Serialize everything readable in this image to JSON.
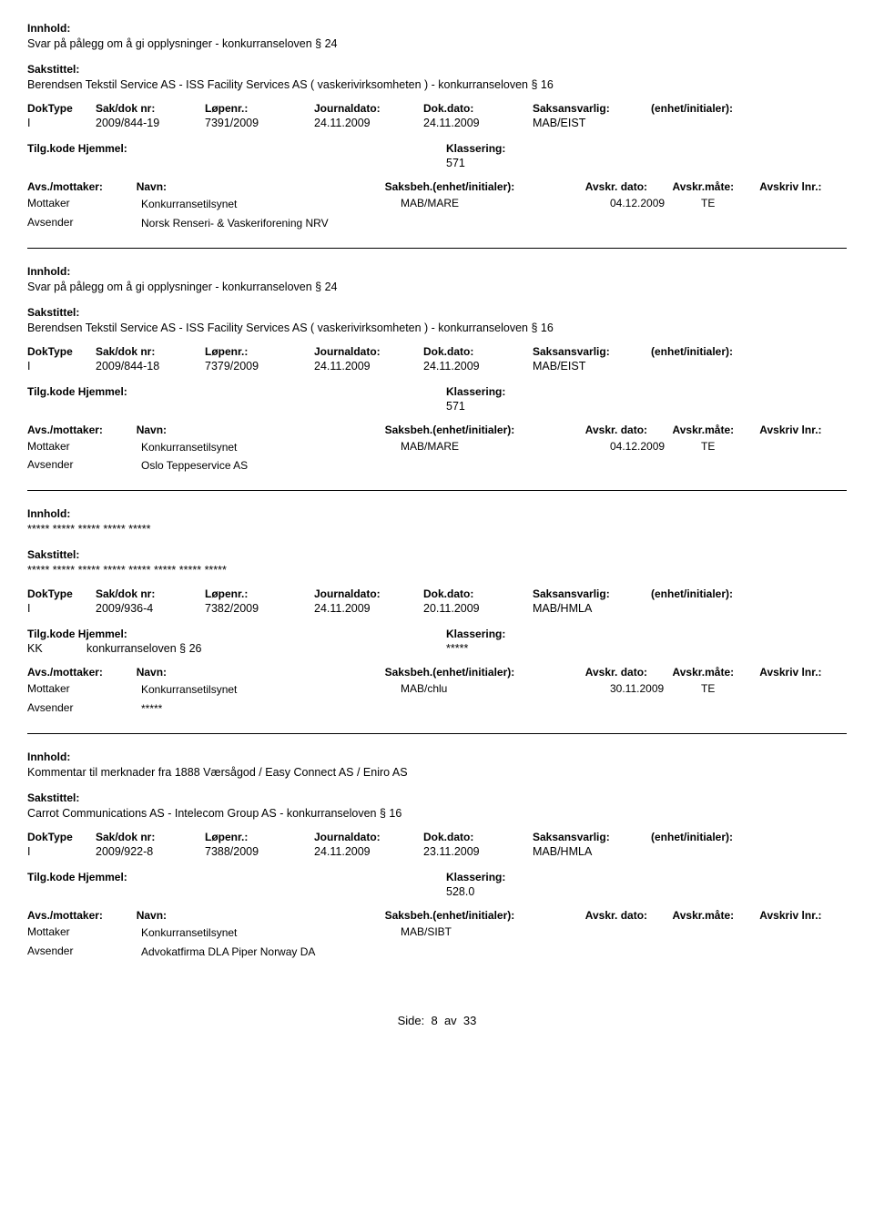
{
  "labels": {
    "innhold": "Innhold:",
    "sakstittel": "Sakstittel:",
    "doktype": "DokType",
    "sakdok": "Sak/dok nr:",
    "lopenr": "Løpenr.:",
    "journaldato": "Journaldato:",
    "dokdato": "Dok.dato:",
    "saksansvarlig": "Saksansvarlig:",
    "enhet": "(enhet/initialer):",
    "tilgkode": "Tilg.kode",
    "hjemmel": "Hjemmel:",
    "klassering": "Klassering:",
    "avsmottaker": "Avs./mottaker:",
    "navn": "Navn:",
    "saksbeh": "Saksbeh.(enhet/initialer):",
    "avskrdato": "Avskr. dato:",
    "avskrmate": "Avskr.måte:",
    "avskrivlnr": "Avskriv lnr.:",
    "mottaker": "Mottaker",
    "avsender": "Avsender"
  },
  "records": [
    {
      "innhold": "Svar på pålegg om å gi opplysninger - konkurranseloven § 24",
      "sakstittel": "Berendsen Tekstil Service AS - ISS Facility Services AS ( vaskerivirksomheten ) - konkurranseloven § 16",
      "doktype": "I",
      "sakdok": "2009/844-19",
      "lopenr": "7391/2009",
      "journaldato": "24.11.2009",
      "dokdato": "24.11.2009",
      "saksansvarlig": "MAB/EIST",
      "tilgkode": "",
      "hjemmel": "",
      "klassering": "571",
      "parties": [
        {
          "role": "Mottaker",
          "name": "Konkurransetilsynet",
          "saksbeh": "MAB/MARE",
          "dato": "04.12.2009",
          "mate": "TE"
        },
        {
          "role": "Avsender",
          "name": "Norsk Renseri- & Vaskeriforening NRV",
          "saksbeh": "",
          "dato": "",
          "mate": ""
        }
      ]
    },
    {
      "innhold": "Svar på pålegg om å gi opplysninger - konkurranseloven § 24",
      "sakstittel": "Berendsen Tekstil Service AS - ISS Facility Services AS ( vaskerivirksomheten ) - konkurranseloven § 16",
      "doktype": "I",
      "sakdok": "2009/844-18",
      "lopenr": "7379/2009",
      "journaldato": "24.11.2009",
      "dokdato": "24.11.2009",
      "saksansvarlig": "MAB/EIST",
      "tilgkode": "",
      "hjemmel": "",
      "klassering": "571",
      "parties": [
        {
          "role": "Mottaker",
          "name": "Konkurransetilsynet",
          "saksbeh": "MAB/MARE",
          "dato": "04.12.2009",
          "mate": "TE"
        },
        {
          "role": "Avsender",
          "name": "Oslo Teppeservice AS",
          "saksbeh": "",
          "dato": "",
          "mate": ""
        }
      ]
    },
    {
      "innhold": "***** ***** ***** ***** *****",
      "sakstittel": "***** ***** ***** ***** ***** ***** ***** *****",
      "doktype": "I",
      "sakdok": "2009/936-4",
      "lopenr": "7382/2009",
      "journaldato": "24.11.2009",
      "dokdato": "20.11.2009",
      "saksansvarlig": "MAB/HMLA",
      "tilgkode": "KK",
      "hjemmel": "konkurranseloven § 26",
      "klassering": "*****",
      "parties": [
        {
          "role": "Mottaker",
          "name": "Konkurransetilsynet",
          "saksbeh": "MAB/chlu",
          "dato": "30.11.2009",
          "mate": "TE"
        },
        {
          "role": "Avsender",
          "name": "*****",
          "saksbeh": "",
          "dato": "",
          "mate": ""
        }
      ]
    },
    {
      "innhold": "Kommentar til merknader fra 1888 Værsågod / Easy Connect AS / Eniro AS",
      "sakstittel": "Carrot Communications AS - Intelecom Group AS - konkurranseloven § 16",
      "doktype": "I",
      "sakdok": "2009/922-8",
      "lopenr": "7388/2009",
      "journaldato": "24.11.2009",
      "dokdato": "23.11.2009",
      "saksansvarlig": "MAB/HMLA",
      "tilgkode": "",
      "hjemmel": "",
      "klassering": "528.0",
      "parties": [
        {
          "role": "Mottaker",
          "name": "Konkurransetilsynet",
          "saksbeh": "MAB/SIBT",
          "dato": "",
          "mate": ""
        },
        {
          "role": "Avsender",
          "name": "Advokatfirma DLA Piper Norway DA",
          "saksbeh": "",
          "dato": "",
          "mate": ""
        }
      ]
    }
  ],
  "footer": {
    "prefix": "Side:",
    "page": "8",
    "sep": "av",
    "total": "33"
  }
}
